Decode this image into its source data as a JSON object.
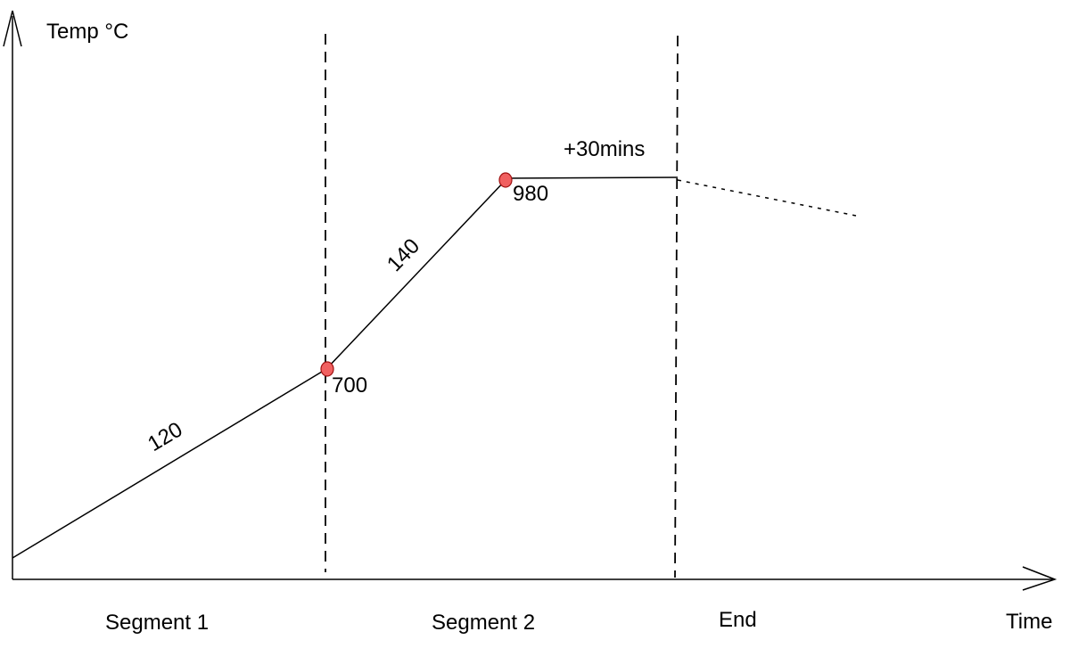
{
  "diagram": {
    "y_axis_label": "Temp °C",
    "x_axis_label": "Time",
    "segments": [
      {
        "label": "Segment 1"
      },
      {
        "label": "Segment 2"
      },
      {
        "label": "End"
      }
    ],
    "ramp_labels": [
      "120",
      "140"
    ],
    "hold_label": "+30mins",
    "points": [
      {
        "label": "700"
      },
      {
        "label": "980"
      }
    ],
    "colors": {
      "line": "#000000",
      "point_fill": "#f06060",
      "point_stroke": "#a01010"
    }
  }
}
